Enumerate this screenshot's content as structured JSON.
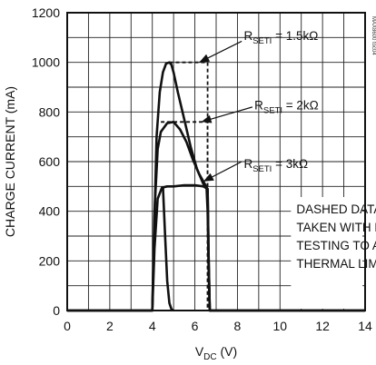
{
  "chart_data": {
    "type": "line",
    "title": "",
    "xlabel": "VDC (V)",
    "ylabel": "CHARGE CURRENT (mA)",
    "xlabel_parts": {
      "main": "V",
      "sub": "DC",
      "rest": " (V)"
    },
    "xlim": [
      0,
      14
    ],
    "ylim": [
      0,
      1200
    ],
    "x_ticks": [
      "0",
      "2",
      "4",
      "6",
      "8",
      "10",
      "12",
      "14"
    ],
    "y_ticks": [
      "0",
      "200",
      "400",
      "600",
      "800",
      "1000",
      "1200"
    ],
    "grid": true,
    "series": [
      {
        "name": "RSETI = 1.5kΩ",
        "label_parts": {
          "main": "R",
          "sub": "SETI",
          "rest": " = 1.5kΩ"
        },
        "style": "solid",
        "x": [
          0,
          4.0,
          4.1,
          4.2,
          4.35,
          4.5,
          4.65,
          4.8,
          4.9,
          5.0,
          5.2,
          5.5,
          5.8,
          6.1,
          6.4,
          6.55,
          6.6,
          6.65,
          6.7,
          14
        ],
        "y": [
          0,
          0,
          360,
          700,
          880,
          960,
          995,
          1000,
          990,
          960,
          880,
          770,
          660,
          570,
          510,
          490,
          400,
          150,
          0,
          0
        ]
      },
      {
        "name": "RSETI = 1.5kΩ pulse",
        "style": "dashed",
        "x": [
          4.8,
          6.6,
          6.6
        ],
        "y": [
          1000,
          1000,
          0
        ]
      },
      {
        "name": "RSETI = 2kΩ",
        "label_parts": {
          "main": "R",
          "sub": "SETI",
          "rest": " = 2kΩ"
        },
        "style": "solid",
        "x": [
          0,
          4.0,
          4.1,
          4.25,
          4.4,
          4.7,
          5.0,
          5.3,
          5.6,
          5.9,
          6.2,
          6.5,
          6.6,
          6.65,
          6.7,
          14
        ],
        "y": [
          0,
          0,
          400,
          650,
          720,
          755,
          760,
          730,
          680,
          610,
          550,
          505,
          490,
          200,
          0,
          0
        ]
      },
      {
        "name": "RSETI = 2kΩ pulse",
        "style": "dashed",
        "x": [
          4.4,
          6.6,
          6.6
        ],
        "y": [
          760,
          760,
          0
        ]
      },
      {
        "name": "RSETI = 3kΩ",
        "label_parts": {
          "main": "R",
          "sub": "SETI",
          "rest": " = 3kΩ"
        },
        "style": "solid",
        "x": [
          0,
          4.0,
          4.1,
          4.25,
          4.45,
          4.7,
          5.0,
          5.5,
          6.0,
          6.4,
          6.6,
          6.65,
          6.7,
          14
        ],
        "y": [
          0,
          0,
          250,
          450,
          495,
          500,
          500,
          505,
          505,
          500,
          490,
          200,
          0,
          0
        ]
      },
      {
        "name": "low branch",
        "style": "solid",
        "x": [
          4.5,
          4.6,
          4.7,
          4.8,
          4.9,
          5.0
        ],
        "y": [
          500,
          300,
          120,
          30,
          5,
          0
        ]
      }
    ],
    "annotations": [
      {
        "series": 0,
        "text_parts": {
          "main": "R",
          "sub": "SETI",
          "rest": " = 1.5kΩ"
        },
        "x": 6.2,
        "y": 1000
      },
      {
        "series": 1,
        "text_parts": {
          "main": "R",
          "sub": "SETI",
          "rest": " = 2kΩ"
        },
        "x": 6.3,
        "y": 760
      },
      {
        "series": 2,
        "text_parts": {
          "main": "R",
          "sub": "SETI",
          "rest": " = 3kΩ"
        },
        "x": 6.4,
        "y": 520
      }
    ],
    "note": [
      "DASHED DATA",
      "TAKEN WITH PULSE",
      "TESTING TO AVOID",
      "THERMAL LIMIT"
    ],
    "watermark": "MAX8600 toc04"
  }
}
